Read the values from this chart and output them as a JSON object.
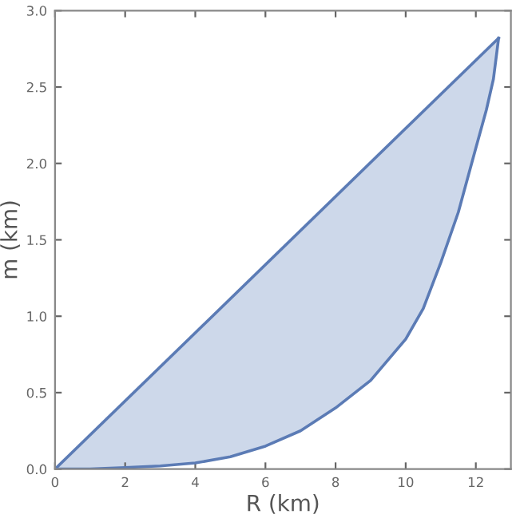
{
  "chart_data": {
    "type": "line",
    "xlabel": "R (km)",
    "ylabel": "m (km)",
    "xlim": [
      0,
      13
    ],
    "ylim": [
      0,
      3
    ],
    "xticks": [
      0,
      2,
      4,
      6,
      8,
      10,
      12
    ],
    "yticks": [
      {
        "value": 0,
        "label": "0.0"
      },
      {
        "value": 0.5,
        "label": "0.5"
      },
      {
        "value": 1,
        "label": "1.0"
      },
      {
        "value": 1.5,
        "label": "1.5"
      },
      {
        "value": 2,
        "label": "2.0"
      },
      {
        "value": 2.5,
        "label": "2.5"
      },
      {
        "value": 3,
        "label": "3.0"
      }
    ],
    "grid": false,
    "series": [
      {
        "color": "#5b7bb5",
        "x": [
          0,
          12.65
        ],
        "values": [
          0,
          2.82
        ]
      },
      {
        "color": "#5b7bb5",
        "x": [
          0,
          1,
          2,
          3,
          4,
          5,
          6,
          7,
          8,
          9,
          10,
          10.5,
          11,
          11.5,
          12,
          12.3,
          12.5,
          12.65
        ],
        "values": [
          0,
          0,
          0.01,
          0.02,
          0.04,
          0.08,
          0.15,
          0.25,
          0.4,
          0.58,
          0.85,
          1.05,
          1.35,
          1.68,
          2.1,
          2.35,
          2.55,
          2.82
        ]
      }
    ]
  }
}
